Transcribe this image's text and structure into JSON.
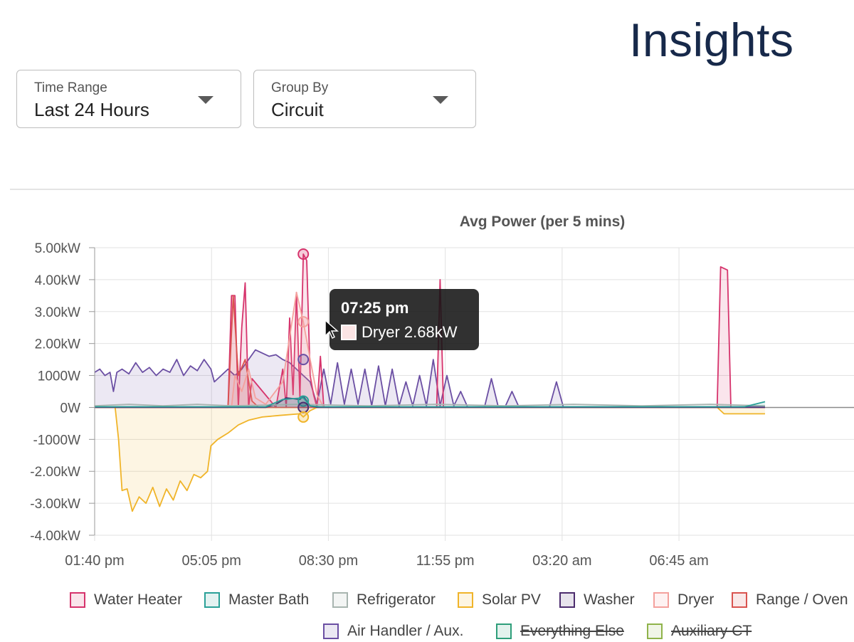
{
  "page": {
    "title": "Insights"
  },
  "filters": {
    "time_range": {
      "label": "Time Range",
      "value": "Last 24 Hours"
    },
    "group_by": {
      "label": "Group By",
      "value": "Circuit"
    }
  },
  "tooltip": {
    "time": "07:25 pm",
    "series": "Dryer",
    "value": "Dryer 2.68kW"
  },
  "chart_data": {
    "type": "area",
    "title": "Avg Power (per 5 mins)",
    "xlabel": "",
    "ylabel": "",
    "ylim": [
      -4.0,
      5.0
    ],
    "y_ticks": [
      {
        "value": 5,
        "label": "5.00kW"
      },
      {
        "value": 4,
        "label": "4.00kW"
      },
      {
        "value": 3,
        "label": "3.00kW"
      },
      {
        "value": 2,
        "label": "2.00kW"
      },
      {
        "value": 1,
        "label": "1000W"
      },
      {
        "value": 0,
        "label": "0W"
      },
      {
        "value": -1,
        "label": "-1000W"
      },
      {
        "value": -2,
        "label": "-2.00kW"
      },
      {
        "value": -3,
        "label": "-3.00kW"
      },
      {
        "value": -4,
        "label": "-4.00kW"
      }
    ],
    "x_unit": "hours since first tick label",
    "xlim": [
      0,
      22.2
    ],
    "x_ticks": [
      {
        "value": 0,
        "label": "01:40 pm"
      },
      {
        "value": 3.4167,
        "label": "05:05 pm"
      },
      {
        "value": 6.8333,
        "label": "08:30 pm"
      },
      {
        "value": 10.25,
        "label": "11:55 pm"
      },
      {
        "value": 13.6667,
        "label": "03:20 am"
      },
      {
        "value": 17.0833,
        "label": "06:45 am"
      }
    ],
    "grid": true,
    "legend_position": "bottom",
    "series": [
      {
        "name": "Water Heater",
        "color": "#d6336c",
        "visible": true,
        "points": [
          [
            0,
            0
          ],
          [
            3.9,
            0
          ],
          [
            4.0,
            3.5
          ],
          [
            4.1,
            3.5
          ],
          [
            4.2,
            0
          ],
          [
            4.3,
            2.5
          ],
          [
            4.4,
            3.9
          ],
          [
            4.5,
            0
          ],
          [
            4.6,
            0.9
          ],
          [
            5.3,
            0
          ],
          [
            5.5,
            1.2
          ],
          [
            5.6,
            0
          ],
          [
            5.7,
            2.8
          ],
          [
            5.8,
            0.4
          ],
          [
            5.9,
            3.6
          ],
          [
            6.0,
            0.3
          ],
          [
            6.1,
            4.8
          ],
          [
            6.2,
            4.6
          ],
          [
            6.3,
            1.0
          ],
          [
            6.4,
            0.4
          ],
          [
            6.5,
            0
          ],
          [
            6.6,
            1.6
          ],
          [
            6.7,
            0
          ],
          [
            7.0,
            0
          ],
          [
            10.0,
            0
          ],
          [
            10.1,
            4.0
          ],
          [
            10.2,
            0
          ],
          [
            18.2,
            0
          ],
          [
            18.3,
            4.4
          ],
          [
            18.5,
            4.3
          ],
          [
            18.6,
            0
          ],
          [
            19.6,
            0
          ]
        ]
      },
      {
        "name": "Master Bath",
        "color": "#2aa198",
        "visible": true,
        "points": [
          [
            0,
            0.02
          ],
          [
            5.0,
            0.02
          ],
          [
            5.5,
            0.25
          ],
          [
            6.1,
            0.3
          ],
          [
            6.3,
            0.05
          ],
          [
            6.6,
            0.02
          ],
          [
            19.0,
            0.02
          ],
          [
            19.6,
            0.18
          ]
        ]
      },
      {
        "name": "Refrigerator",
        "color": "#a8b5b0",
        "visible": true,
        "points": [
          [
            0,
            0.05
          ],
          [
            1.0,
            0.1
          ],
          [
            2.0,
            0.05
          ],
          [
            3.0,
            0.1
          ],
          [
            4.0,
            0.05
          ],
          [
            6.0,
            0.1
          ],
          [
            8.0,
            0.05
          ],
          [
            10.0,
            0.1
          ],
          [
            12.0,
            0.05
          ],
          [
            14.0,
            0.1
          ],
          [
            16.0,
            0.05
          ],
          [
            18.0,
            0.1
          ],
          [
            19.6,
            0.05
          ]
        ]
      },
      {
        "name": "Solar PV",
        "color": "#f0b429",
        "visible": true,
        "points": [
          [
            0,
            0
          ],
          [
            0.6,
            0
          ],
          [
            0.7,
            -1.0
          ],
          [
            0.8,
            -2.6
          ],
          [
            0.95,
            -2.55
          ],
          [
            1.1,
            -3.25
          ],
          [
            1.3,
            -2.8
          ],
          [
            1.5,
            -3.0
          ],
          [
            1.7,
            -2.5
          ],
          [
            1.9,
            -3.1
          ],
          [
            2.1,
            -2.55
          ],
          [
            2.3,
            -2.9
          ],
          [
            2.5,
            -2.3
          ],
          [
            2.7,
            -2.6
          ],
          [
            2.9,
            -2.1
          ],
          [
            3.1,
            -2.2
          ],
          [
            3.3,
            -2.0
          ],
          [
            3.4,
            -1.2
          ],
          [
            3.6,
            -1.0
          ],
          [
            3.9,
            -0.8
          ],
          [
            4.2,
            -0.55
          ],
          [
            4.5,
            -0.4
          ],
          [
            4.9,
            -0.3
          ],
          [
            5.4,
            -0.25
          ],
          [
            6.0,
            -0.2
          ],
          [
            6.1,
            -0.3
          ],
          [
            6.3,
            -0.1
          ],
          [
            6.5,
            0
          ],
          [
            18.2,
            0
          ],
          [
            18.4,
            -0.2
          ],
          [
            19.6,
            -0.2
          ]
        ]
      },
      {
        "name": "Washer",
        "color": "#4c2c6e",
        "visible": true,
        "points": [
          [
            0,
            0
          ],
          [
            5.0,
            0
          ],
          [
            5.3,
            0.1
          ],
          [
            5.6,
            0.3
          ],
          [
            6.0,
            0.25
          ],
          [
            6.1,
            0.35
          ],
          [
            6.3,
            0.05
          ],
          [
            6.5,
            0
          ],
          [
            19.6,
            0
          ]
        ]
      },
      {
        "name": "Dryer",
        "color": "#f4a19d",
        "visible": true,
        "points": [
          [
            0,
            0
          ],
          [
            4.0,
            0
          ],
          [
            4.1,
            1.0
          ],
          [
            4.3,
            0.5
          ],
          [
            4.5,
            1.2
          ],
          [
            4.7,
            0.3
          ],
          [
            5.0,
            0.1
          ],
          [
            5.5,
            0.8
          ],
          [
            5.9,
            3.6
          ],
          [
            6.1,
            2.68
          ],
          [
            6.3,
            1.5
          ],
          [
            6.5,
            0.4
          ],
          [
            6.7,
            0
          ],
          [
            19.6,
            0
          ]
        ]
      },
      {
        "name": "Range / Oven",
        "color": "#d9534f",
        "visible": true,
        "points": [
          [
            0,
            0
          ],
          [
            3.9,
            0
          ],
          [
            4.05,
            3.5
          ],
          [
            4.2,
            1.0
          ],
          [
            4.4,
            1.5
          ],
          [
            4.6,
            0.2
          ],
          [
            4.8,
            0
          ],
          [
            19.6,
            0
          ]
        ]
      },
      {
        "name": "Air Handler / Aux.",
        "color": "#6b4fa3",
        "visible": true,
        "points": [
          [
            0,
            1.1
          ],
          [
            0.15,
            1.2
          ],
          [
            0.3,
            1.0
          ],
          [
            0.45,
            1.1
          ],
          [
            0.55,
            0.5
          ],
          [
            0.65,
            1.1
          ],
          [
            0.8,
            1.2
          ],
          [
            1.0,
            1.05
          ],
          [
            1.2,
            1.4
          ],
          [
            1.4,
            1.1
          ],
          [
            1.6,
            1.25
          ],
          [
            1.8,
            1.0
          ],
          [
            2.0,
            1.2
          ],
          [
            2.2,
            1.1
          ],
          [
            2.4,
            1.5
          ],
          [
            2.6,
            1.0
          ],
          [
            2.8,
            1.3
          ],
          [
            3.0,
            1.15
          ],
          [
            3.2,
            1.5
          ],
          [
            3.4,
            1.2
          ],
          [
            3.5,
            0.8
          ],
          [
            3.7,
            1.0
          ],
          [
            3.9,
            1.2
          ],
          [
            4.1,
            1.0
          ],
          [
            4.3,
            1.2
          ],
          [
            4.5,
            1.5
          ],
          [
            4.7,
            1.8
          ],
          [
            4.9,
            1.7
          ],
          [
            5.1,
            1.6
          ],
          [
            5.3,
            1.65
          ],
          [
            5.5,
            1.5
          ],
          [
            5.7,
            1.4
          ],
          [
            5.9,
            1.2
          ],
          [
            6.1,
            1.0
          ],
          [
            6.3,
            0.8
          ],
          [
            6.5,
            0.1
          ],
          [
            6.7,
            1.2
          ],
          [
            6.9,
            0.1
          ],
          [
            7.1,
            1.4
          ],
          [
            7.3,
            0.1
          ],
          [
            7.5,
            1.2
          ],
          [
            7.7,
            0.1
          ],
          [
            7.9,
            1.2
          ],
          [
            8.1,
            0.05
          ],
          [
            8.3,
            1.3
          ],
          [
            8.5,
            0.05
          ],
          [
            8.7,
            1.2
          ],
          [
            8.9,
            0.05
          ],
          [
            9.1,
            0.8
          ],
          [
            9.3,
            0.05
          ],
          [
            9.5,
            1.0
          ],
          [
            9.7,
            0.05
          ],
          [
            9.9,
            1.5
          ],
          [
            10.1,
            0.05
          ],
          [
            10.3,
            1.0
          ],
          [
            10.5,
            0.05
          ],
          [
            10.7,
            0.5
          ],
          [
            10.9,
            0.02
          ],
          [
            11.4,
            0.02
          ],
          [
            11.6,
            0.9
          ],
          [
            11.8,
            0.02
          ],
          [
            12.0,
            0.02
          ],
          [
            12.2,
            0.5
          ],
          [
            12.4,
            0.02
          ],
          [
            13.3,
            0.02
          ],
          [
            13.5,
            0.8
          ],
          [
            13.7,
            0.02
          ],
          [
            19.6,
            0.02
          ]
        ]
      },
      {
        "name": "Everything Else",
        "color": "#2e9e7a",
        "visible": false,
        "points": []
      },
      {
        "name": "Auxiliary CT",
        "color": "#8fb34a",
        "visible": false,
        "points": []
      }
    ]
  }
}
